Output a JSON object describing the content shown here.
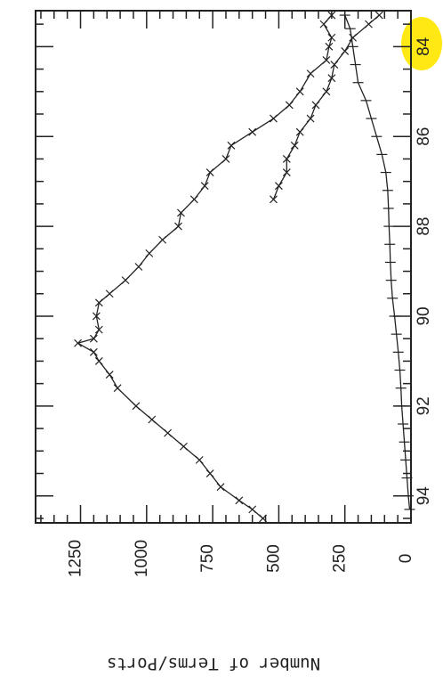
{
  "chart_data": {
    "type": "line",
    "orientation": "rotated-90",
    "title": "",
    "xlabel": "",
    "ylabel": "Number of Terms/Ports",
    "xlim": [
      83.2,
      94.6
    ],
    "ylim": [
      0,
      1420
    ],
    "x_ticks": [
      84,
      86,
      88,
      90,
      92,
      94
    ],
    "y_ticks": [
      0,
      250,
      500,
      750,
      1000,
      1250
    ],
    "grid": false,
    "legend": "none",
    "highlight": {
      "x": 94,
      "color": "#ffe600",
      "note": "circled tick label"
    },
    "series": [
      {
        "marker": "cross",
        "x": [
          83.3,
          83.5,
          83.8,
          84.0,
          84.3,
          84.6,
          85.0,
          85.3,
          85.6,
          85.9,
          86.2,
          86.5,
          86.8,
          87.1,
          87.4,
          87.7,
          88.0,
          88.3,
          88.6,
          88.9,
          89.2,
          89.5,
          89.7,
          90.0,
          90.3,
          90.5,
          90.6,
          90.8,
          91.0,
          91.3,
          91.6,
          92.0,
          92.3,
          92.6,
          92.9,
          93.2,
          93.5,
          93.8,
          94.1,
          94.3,
          94.5
        ],
        "y": [
          300,
          330,
          300,
          310,
          320,
          380,
          420,
          460,
          520,
          600,
          680,
          700,
          760,
          780,
          820,
          870,
          880,
          940,
          990,
          1030,
          1080,
          1140,
          1180,
          1190,
          1180,
          1200,
          1260,
          1200,
          1180,
          1140,
          1110,
          1040,
          980,
          920,
          860,
          800,
          760,
          720,
          650,
          600,
          560
        ]
      },
      {
        "marker": "cross",
        "x": [
          83.3,
          83.5,
          83.8,
          84.1,
          84.4,
          84.7,
          85.0,
          85.3,
          85.6,
          85.9,
          86.2,
          86.5,
          86.8,
          87.1,
          87.4
        ],
        "y": [
          120,
          160,
          220,
          250,
          290,
          300,
          320,
          360,
          380,
          420,
          440,
          470,
          470,
          500,
          520
        ]
      },
      {
        "marker": "tick",
        "x": [
          83.3,
          83.6,
          84.0,
          84.4,
          84.8,
          85.2,
          85.6,
          86.0,
          86.4,
          86.8,
          87.2,
          87.6,
          88.0,
          88.4,
          88.8,
          89.2,
          89.6,
          90.0,
          90.4,
          90.8,
          91.2,
          91.6,
          92.0,
          92.4,
          92.8,
          93.2,
          93.6,
          94.0,
          94.3
        ],
        "y": [
          250,
          230,
          220,
          210,
          200,
          170,
          150,
          130,
          110,
          95,
          88,
          85,
          83,
          80,
          78,
          75,
          70,
          62,
          55,
          48,
          42,
          38,
          35,
          30,
          25,
          20,
          15,
          10,
          5
        ]
      }
    ]
  }
}
